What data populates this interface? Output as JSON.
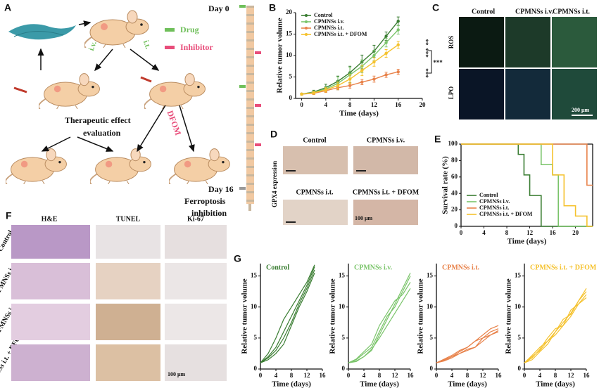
{
  "panel_a": {
    "letter": "A",
    "iv": "i.v.",
    "it": "i.t.",
    "drug": "Drug",
    "inhibitor": "Inhibitor",
    "day0": "Day 0",
    "day16": "Day 16",
    "dfom": "DFOM",
    "therapeutic": [
      "Therapeutic effect",
      "evaluation"
    ],
    "ferroptosis": [
      "Ferroptosis",
      "inhibition"
    ]
  },
  "panel_c": {
    "letter": "C",
    "columns": [
      "Control",
      "CPMNSs i.v.",
      "CPMNSs i.t."
    ],
    "rows": [
      "ROS",
      "LPO"
    ],
    "scale": "200 μm"
  },
  "panel_d": {
    "letter": "D",
    "ylabel": "GPX4 expression",
    "labels": [
      "Control",
      "CPMNSs i.v.",
      "CPMNSs i.t.",
      "CPMNSs i.t. + DFOM"
    ],
    "scale": "100 μm"
  },
  "panel_f": {
    "letter": "F",
    "columns": [
      "H&E",
      "TUNEL",
      "Ki-67"
    ],
    "rows": [
      "Control",
      "CPMNSs i.v.",
      "CPMNSs i.t.",
      "CPMNSs i.t. + DFOM"
    ],
    "scale": "100 μm"
  },
  "chart_data": [
    {
      "panel": "B",
      "type": "line",
      "x": [
        0,
        2,
        4,
        6,
        8,
        10,
        12,
        14,
        16
      ],
      "xlim": [
        -1,
        20
      ],
      "xticks": [
        0,
        4,
        8,
        12,
        16,
        20
      ],
      "ylim": [
        0,
        20
      ],
      "yticks": [
        0,
        5,
        10,
        15,
        20
      ],
      "xlabel": "Time (days)",
      "ylabel": "Relative  tumor volume",
      "legend": "upper left",
      "series": [
        {
          "name": "Control",
          "color": "#3a7d32",
          "values": [
            1,
            1.5,
            2.5,
            4,
            6,
            8.5,
            11,
            14.5,
            18
          ],
          "errors": [
            0.2,
            0.4,
            0.8,
            1.2,
            1.5,
            1.6,
            1.4,
            1,
            1
          ]
        },
        {
          "name": "CPMNSs i.v.",
          "color": "#7ac46a",
          "values": [
            1,
            1.4,
            2.2,
            3.5,
            5.5,
            7.5,
            10,
            13,
            16
          ],
          "errors": [
            0.2,
            0.3,
            0.6,
            1.5,
            1.8,
            1.5,
            1.2,
            1,
            1
          ]
        },
        {
          "name": "CPMNSs i.t.",
          "color": "#e8824a",
          "values": [
            1,
            1.2,
            1.8,
            2.5,
            3,
            3.8,
            4.5,
            5.5,
            6.2
          ],
          "errors": [
            0.2,
            0.3,
            0.4,
            0.5,
            0.6,
            0.6,
            0.7,
            0.6,
            0.6
          ]
        },
        {
          "name": "CPMNSs i.t. + DFOM",
          "color": "#f5c22e",
          "values": [
            1,
            1.3,
            2,
            3,
            4.5,
            6.5,
            8.5,
            10.5,
            12.5
          ],
          "errors": [
            0.2,
            0.3,
            0.5,
            0.8,
            1,
            1.2,
            1,
            0.9,
            0.8
          ]
        }
      ],
      "annotations": [
        "**",
        "***",
        "***",
        "***"
      ]
    },
    {
      "panel": "E",
      "type": "step",
      "xlim": [
        0,
        23
      ],
      "xticks": [
        0,
        4,
        8,
        12,
        16,
        20
      ],
      "ylim": [
        0,
        100
      ],
      "yticks": [
        0,
        20,
        40,
        60,
        80,
        100
      ],
      "xlabel": "Time (days)",
      "ylabel": "Survival rate (%)",
      "legend": "lower left",
      "series": [
        {
          "name": "Control",
          "color": "#3a7d32",
          "x": [
            0,
            10,
            11,
            12,
            14
          ],
          "values": [
            100,
            87.5,
            62.5,
            37.5,
            0
          ]
        },
        {
          "name": "CPMNSs i.v.",
          "color": "#7ac46a",
          "x": [
            0,
            14,
            16,
            17
          ],
          "values": [
            100,
            75,
            62.5,
            0
          ]
        },
        {
          "name": "CPMNSs i.t.",
          "color": "#e8824a",
          "x": [
            0,
            22
          ],
          "values": [
            100,
            50
          ]
        },
        {
          "name": "CPMNSs i.t. + DFOM",
          "color": "#f5c22e",
          "x": [
            0,
            16,
            18,
            20,
            22
          ],
          "values": [
            100,
            62.5,
            25,
            12.5,
            0
          ]
        }
      ]
    },
    {
      "panel": "G",
      "type": "line",
      "title": "Control",
      "color": "#3a7d32",
      "x": [
        0,
        2,
        4,
        6,
        8,
        10,
        12,
        14
      ],
      "xlim": [
        0,
        16
      ],
      "xticks": [
        0,
        4,
        8,
        12,
        16
      ],
      "ylim": [
        0,
        17
      ],
      "yticks": [
        0,
        5,
        10,
        15
      ],
      "xlabel": "Time (days)",
      "ylabel": "Relative  tumor volume",
      "series": [
        {
          "color": "#3a7d32",
          "values": [
            1,
            2,
            3.5,
            6,
            8.5,
            11,
            13.5,
            16.5
          ]
        },
        {
          "color": "#3a7d32",
          "values": [
            1,
            1.8,
            3,
            5,
            7.5,
            10.5,
            13,
            16
          ]
        },
        {
          "color": "#3a7d32",
          "values": [
            1,
            2.5,
            5,
            8,
            10,
            12,
            14,
            16.8
          ]
        },
        {
          "color": "#3a7d32",
          "values": [
            1,
            1.5,
            2.5,
            4,
            7,
            10,
            12.5,
            15.5
          ]
        }
      ]
    },
    {
      "type": "line",
      "title": "CPMNSs i.v.",
      "color": "#7ac46a",
      "x": [
        0,
        2,
        4,
        6,
        8,
        10,
        12,
        14,
        16
      ],
      "xlim": [
        0,
        16
      ],
      "xticks": [
        0,
        4,
        8,
        12,
        16
      ],
      "ylim": [
        0,
        17
      ],
      "yticks": [
        0,
        5,
        10,
        15
      ],
      "xlabel": "Time (days)",
      "ylabel": "Relative  tumor volume",
      "series": [
        {
          "color": "#7ac46a",
          "values": [
            1,
            1.5,
            2.5,
            3.5,
            6,
            8.5,
            10,
            12.5,
            15
          ]
        },
        {
          "color": "#7ac46a",
          "values": [
            1,
            1.3,
            2,
            3,
            5.5,
            8,
            10.5,
            13,
            15.5
          ]
        },
        {
          "color": "#7ac46a",
          "values": [
            1,
            1.6,
            2.8,
            4,
            7,
            9,
            11,
            12,
            14
          ]
        },
        {
          "color": "#7ac46a",
          "values": [
            1,
            1.2,
            2,
            3.2,
            5,
            7,
            9,
            11,
            13
          ]
        }
      ]
    },
    {
      "type": "line",
      "title": "CPMNSs i.t.",
      "color": "#e8824a",
      "x": [
        0,
        2,
        4,
        6,
        8,
        10,
        12,
        14,
        16
      ],
      "xlim": [
        0,
        16
      ],
      "xticks": [
        0,
        4,
        8,
        12,
        16
      ],
      "ylim": [
        0,
        17
      ],
      "yticks": [
        0,
        5,
        10,
        15
      ],
      "xlabel": "Time (days)",
      "ylabel": "Relative  tumor volume",
      "series": [
        {
          "color": "#e8824a",
          "values": [
            1,
            1.5,
            2,
            2.5,
            3,
            3.5,
            4.5,
            5.5,
            6
          ]
        },
        {
          "color": "#e8824a",
          "values": [
            1,
            1.4,
            2,
            2.8,
            3.5,
            4.5,
            5.5,
            6.5,
            7
          ]
        },
        {
          "color": "#e8824a",
          "values": [
            1,
            1.3,
            1.8,
            2.5,
            3.2,
            3.5,
            5,
            5.5,
            6.2
          ]
        },
        {
          "color": "#e8824a",
          "values": [
            1,
            1.6,
            2.2,
            3,
            3.5,
            4.5,
            5,
            6,
            6.5
          ]
        }
      ]
    },
    {
      "type": "line",
      "title": "CPMNSs i.t. + DFOM",
      "color": "#f5c22e",
      "x": [
        0,
        2,
        4,
        6,
        8,
        10,
        12,
        14,
        16
      ],
      "xlim": [
        0,
        16
      ],
      "xticks": [
        0,
        4,
        8,
        12,
        16
      ],
      "ylim": [
        0,
        17
      ],
      "yticks": [
        0,
        5,
        10,
        15
      ],
      "xlabel": "Time (days)",
      "ylabel": "Relative  tumor volume",
      "series": [
        {
          "color": "#f5c22e",
          "values": [
            1,
            2,
            3,
            4.5,
            6,
            7.5,
            9,
            11,
            12.5
          ]
        },
        {
          "color": "#f5c22e",
          "values": [
            1,
            1.8,
            3.2,
            5,
            6.5,
            7,
            8.5,
            10.5,
            12
          ]
        },
        {
          "color": "#f5c22e",
          "values": [
            1,
            2.2,
            3.5,
            4.5,
            5.5,
            7,
            9.5,
            10.5,
            11.5
          ]
        },
        {
          "color": "#f5c22e",
          "values": [
            1,
            1.5,
            2.8,
            4,
            6,
            8,
            8.8,
            11,
            13
          ]
        }
      ]
    }
  ]
}
